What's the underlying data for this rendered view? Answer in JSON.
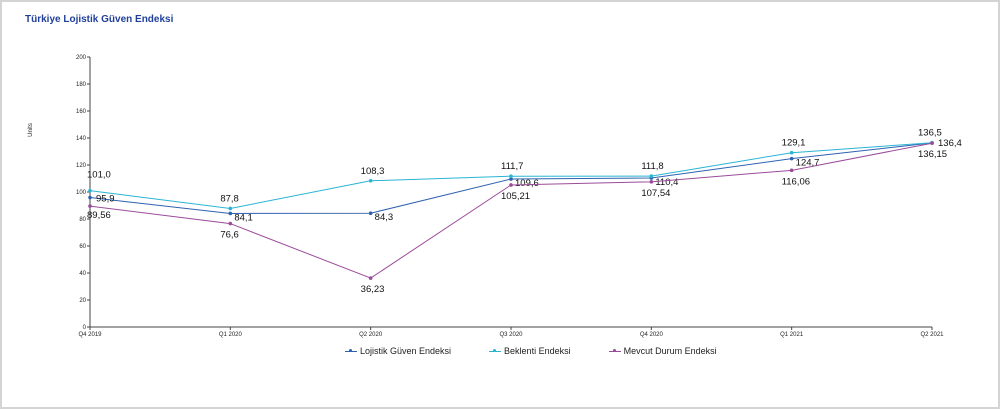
{
  "chart_data": {
    "type": "line",
    "title": "Türkiye Lojistik Güven Endeksi",
    "xlabel": "",
    "ylabel": "Units",
    "ylim": [
      0,
      200
    ],
    "yticks": [
      0,
      20,
      40,
      60,
      80,
      100,
      120,
      140,
      160,
      180,
      200
    ],
    "categories": [
      "Q4 2019",
      "Q1 2020",
      "Q2 2020",
      "Q3 2020",
      "Q4 2020",
      "Q1 2021",
      "Q2 2021"
    ],
    "grid": false,
    "legend_position": "bottom",
    "series": [
      {
        "name": "Lojistik Güven Endeksi",
        "color": "#2e62b0",
        "values": [
          95.9,
          84.1,
          84.3,
          109.6,
          110.4,
          124.7,
          136.4
        ],
        "labels": [
          "95,9",
          "84,1",
          "84,3",
          "109,6",
          "110,4",
          "124,7",
          "136,4"
        ]
      },
      {
        "name": "Beklenti Endeksi",
        "color": "#2ab4d4",
        "values": [
          101.0,
          87.8,
          108.3,
          111.7,
          111.8,
          129.1,
          136.5
        ],
        "labels": [
          "101,0",
          "87,8",
          "108,3",
          "111,7",
          "111,8",
          "129,1",
          "136,5"
        ]
      },
      {
        "name": "Mevcut Durum Endeksi",
        "color": "#9a4c9a",
        "values": [
          89.56,
          76.6,
          36.23,
          105.21,
          107.54,
          116.06,
          136.15
        ],
        "labels": [
          "89,56",
          "76,6",
          "36,23",
          "105,21",
          "107,54",
          "116,06",
          "136,15"
        ]
      }
    ]
  }
}
